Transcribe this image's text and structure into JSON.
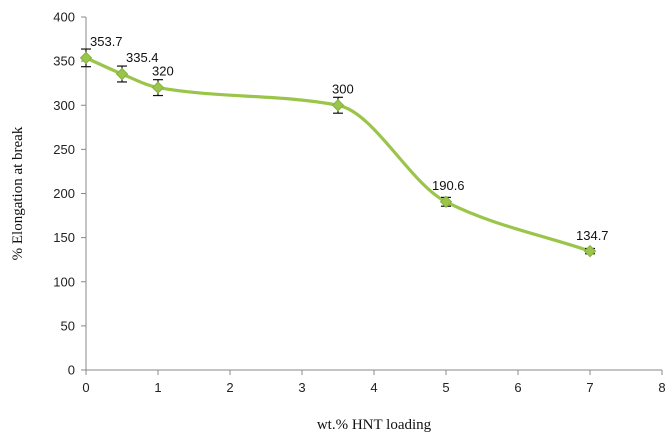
{
  "chart_data": {
    "type": "line",
    "title": "",
    "xlabel": "wt.% HNT loading",
    "ylabel": "% Elongation at break",
    "xlim": [
      0,
      8
    ],
    "ylim": [
      0,
      400
    ],
    "xticks": [
      "0",
      "1",
      "2",
      "3",
      "4",
      "5",
      "6",
      "7",
      "8"
    ],
    "yticks": [
      "0",
      "50",
      "100",
      "150",
      "200",
      "250",
      "300",
      "350",
      "400"
    ],
    "grid": false,
    "legend": "none",
    "smoothed": true,
    "color": "#9ac54a",
    "series": [
      {
        "x": [
          0,
          0.5,
          1,
          3.5,
          5,
          7
        ],
        "values": [
          353.7,
          335.4,
          320,
          300,
          190.6,
          134.7
        ],
        "labels": [
          "353.7",
          "335.4",
          "320",
          "300",
          "190.6",
          "134.7"
        ],
        "error": [
          10,
          9,
          9,
          9,
          5,
          3
        ]
      }
    ]
  }
}
